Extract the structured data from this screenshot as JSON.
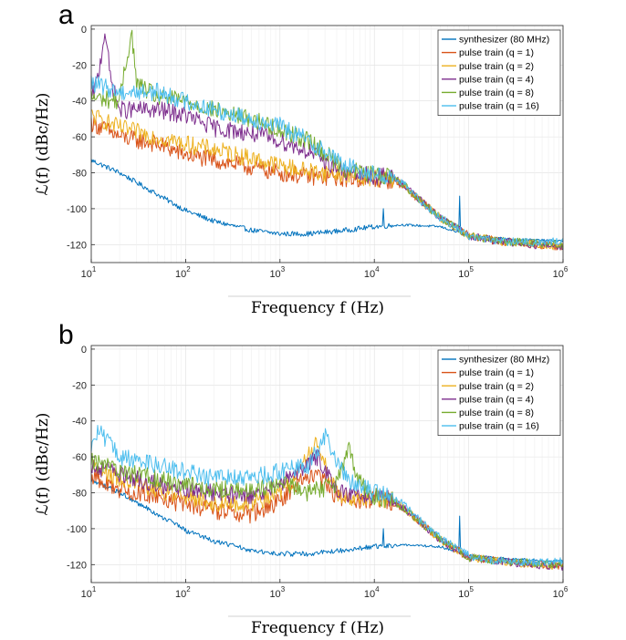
{
  "chart_data": [
    {
      "panel": "a",
      "type": "line",
      "xlabel": "Frequency f (Hz)",
      "ylabel": "ℒ(f) (dBc/Hz)",
      "x_scale": "log",
      "xlim": [
        10,
        1000000
      ],
      "ylim": [
        -130,
        2
      ],
      "x_ticks": [
        {
          "base": "10",
          "exp": "1"
        },
        {
          "base": "10",
          "exp": "2"
        },
        {
          "base": "10",
          "exp": "3"
        },
        {
          "base": "10",
          "exp": "4"
        },
        {
          "base": "10",
          "exp": "5"
        },
        {
          "base": "10",
          "exp": "6"
        }
      ],
      "y_ticks": [
        "0",
        "-20",
        "-40",
        "-60",
        "-80",
        "-100",
        "-120"
      ],
      "y_tick_values": [
        0,
        -20,
        -40,
        -60,
        -80,
        -100,
        -120
      ],
      "grid": true,
      "legend_position": "top-right",
      "series": [
        {
          "name": "synthesizer (80 MHz)",
          "color": "#0072BD",
          "x": [
            10,
            20,
            50,
            100,
            200,
            500,
            1000,
            2000,
            5000,
            10000,
            20000,
            50000,
            100000,
            300000,
            1000000
          ],
          "y": [
            -73,
            -80,
            -92,
            -101,
            -107,
            -112,
            -114,
            -114,
            -112,
            -110,
            -109,
            -110,
            -115,
            -117,
            -118
          ],
          "spikes": [
            [
              12500,
              -100
            ],
            [
              80000,
              -93
            ]
          ]
        },
        {
          "name": "pulse train (q = 1)",
          "color": "#D95319",
          "x": [
            10,
            20,
            50,
            100,
            200,
            500,
            1000,
            2000,
            5000,
            10000,
            15000,
            20000,
            30000,
            50000,
            100000,
            200000,
            500000,
            1000000
          ],
          "y": [
            -52,
            -60,
            -64,
            -70,
            -73,
            -77,
            -80,
            -82,
            -83,
            -84,
            -84,
            -87,
            -95,
            -105,
            -115,
            -118,
            -120,
            -121
          ],
          "noise": 5
        },
        {
          "name": "pulse train (q = 2)",
          "color": "#EDB120",
          "x": [
            10,
            20,
            50,
            100,
            200,
            500,
            1000,
            2000,
            5000,
            10000,
            15000,
            20000,
            30000,
            50000,
            100000,
            200000,
            500000,
            1000000
          ],
          "y": [
            -48,
            -55,
            -60,
            -64,
            -67,
            -72,
            -76,
            -79,
            -81,
            -83,
            -83,
            -86,
            -95,
            -105,
            -115,
            -118,
            -120,
            -121
          ],
          "noise": 5
        },
        {
          "name": "pulse train (q = 4)",
          "color": "#7E2F8E",
          "x": [
            10,
            12,
            14,
            16,
            20,
            50,
            100,
            200,
            500,
            1000,
            2000,
            5000,
            10000,
            15000,
            20000,
            30000,
            50000,
            100000,
            200000,
            500000,
            1000000
          ],
          "y": [
            -40,
            -25,
            0,
            -28,
            -45,
            -45,
            -48,
            -55,
            -58,
            -62,
            -68,
            -80,
            -82,
            -82,
            -86,
            -95,
            -105,
            -115,
            -118,
            -120,
            -121
          ],
          "noise": 5
        },
        {
          "name": "pulse train (q = 8)",
          "color": "#77AC30",
          "x": [
            10,
            20,
            24,
            27,
            30,
            50,
            100,
            200,
            500,
            1000,
            2000,
            5000,
            10000,
            15000,
            20000,
            30000,
            50000,
            100000,
            200000,
            500000,
            1000000
          ],
          "y": [
            -38,
            -40,
            -15,
            -2,
            -30,
            -38,
            -40,
            -45,
            -50,
            -56,
            -62,
            -78,
            -81,
            -82,
            -86,
            -95,
            -105,
            -115,
            -118,
            -119,
            -120
          ],
          "noise": 5
        },
        {
          "name": "pulse train (q = 16)",
          "color": "#4DBEEE",
          "x": [
            10,
            20,
            50,
            100,
            200,
            500,
            1000,
            2000,
            5000,
            10000,
            15000,
            20000,
            30000,
            50000,
            100000,
            200000,
            500000,
            1000000
          ],
          "y": [
            -30,
            -35,
            -35,
            -40,
            -45,
            -50,
            -54,
            -62,
            -76,
            -81,
            -82,
            -86,
            -95,
            -105,
            -115,
            -118,
            -119,
            -118
          ],
          "noise": 5
        }
      ]
    },
    {
      "panel": "b",
      "type": "line",
      "xlabel": "Frequency f (Hz)",
      "ylabel": "ℒ(f) (dBc/Hz)",
      "x_scale": "log",
      "xlim": [
        10,
        1000000
      ],
      "ylim": [
        -130,
        2
      ],
      "x_ticks": [
        {
          "base": "10",
          "exp": "1"
        },
        {
          "base": "10",
          "exp": "2"
        },
        {
          "base": "10",
          "exp": "3"
        },
        {
          "base": "10",
          "exp": "4"
        },
        {
          "base": "10",
          "exp": "5"
        },
        {
          "base": "10",
          "exp": "6"
        }
      ],
      "y_ticks": [
        "0",
        "-20",
        "-40",
        "-60",
        "-80",
        "-100",
        "-120"
      ],
      "y_tick_values": [
        0,
        -20,
        -40,
        -60,
        -80,
        -100,
        -120
      ],
      "grid": true,
      "legend_position": "top-right",
      "series": [
        {
          "name": "synthesizer (80 MHz)",
          "color": "#0072BD",
          "x": [
            10,
            20,
            50,
            100,
            200,
            500,
            1000,
            2000,
            5000,
            10000,
            20000,
            50000,
            100000,
            300000,
            1000000
          ],
          "y": [
            -73,
            -80,
            -92,
            -101,
            -107,
            -112,
            -114,
            -114,
            -112,
            -110,
            -109,
            -110,
            -115,
            -117,
            -118
          ],
          "spikes": [
            [
              12500,
              -100
            ],
            [
              80000,
              -93
            ]
          ]
        },
        {
          "name": "pulse train (q = 1)",
          "color": "#D95319",
          "x": [
            10,
            20,
            50,
            100,
            200,
            500,
            1000,
            1500,
            2500,
            4000,
            7000,
            10000,
            15000,
            20000,
            30000,
            50000,
            100000,
            200000,
            500000,
            1000000
          ],
          "y": [
            -70,
            -78,
            -82,
            -87,
            -90,
            -92,
            -85,
            -75,
            -70,
            -82,
            -85,
            -83,
            -85,
            -88,
            -96,
            -106,
            -116,
            -118,
            -120,
            -121
          ],
          "noise": 5
        },
        {
          "name": "pulse train (q = 2)",
          "color": "#EDB120",
          "x": [
            10,
            20,
            50,
            100,
            200,
            500,
            1000,
            1500,
            2500,
            4000,
            7000,
            10000,
            15000,
            20000,
            30000,
            50000,
            100000,
            200000,
            500000,
            1000000
          ],
          "y": [
            -65,
            -72,
            -78,
            -82,
            -86,
            -86,
            -80,
            -70,
            -52,
            -80,
            -84,
            -83,
            -84,
            -88,
            -96,
            -106,
            -116,
            -118,
            -120,
            -121
          ],
          "noise": 5
        },
        {
          "name": "pulse train (q = 4)",
          "color": "#7E2F8E",
          "x": [
            10,
            20,
            50,
            100,
            200,
            500,
            1000,
            1500,
            2500,
            4000,
            7000,
            10000,
            15000,
            20000,
            30000,
            50000,
            100000,
            200000,
            500000,
            1000000
          ],
          "y": [
            -65,
            -70,
            -75,
            -78,
            -80,
            -82,
            -75,
            -68,
            -60,
            -80,
            -82,
            -82,
            -84,
            -88,
            -96,
            -106,
            -116,
            -118,
            -120,
            -121
          ],
          "noise": 5
        },
        {
          "name": "pulse train (q = 8)",
          "color": "#77AC30",
          "x": [
            10,
            20,
            50,
            100,
            200,
            500,
            1000,
            2000,
            4000,
            5500,
            6500,
            8000,
            10000,
            15000,
            20000,
            30000,
            50000,
            100000,
            200000,
            500000,
            1000000
          ],
          "y": [
            -62,
            -68,
            -72,
            -75,
            -78,
            -78,
            -75,
            -80,
            -75,
            -55,
            -70,
            -78,
            -82,
            -84,
            -88,
            -96,
            -106,
            -116,
            -118,
            -119,
            -120
          ],
          "noise": 5
        },
        {
          "name": "pulse train (q = 16)",
          "color": "#4DBEEE",
          "x": [
            10,
            12,
            20,
            50,
            100,
            200,
            500,
            1000,
            2000,
            3000,
            5000,
            10000,
            15000,
            20000,
            30000,
            50000,
            100000,
            200000,
            500000,
            1000000
          ],
          "y": [
            -55,
            -45,
            -60,
            -65,
            -68,
            -72,
            -72,
            -68,
            -65,
            -48,
            -72,
            -80,
            -82,
            -86,
            -95,
            -105,
            -115,
            -118,
            -119,
            -118
          ],
          "noise": 5
        }
      ]
    }
  ]
}
